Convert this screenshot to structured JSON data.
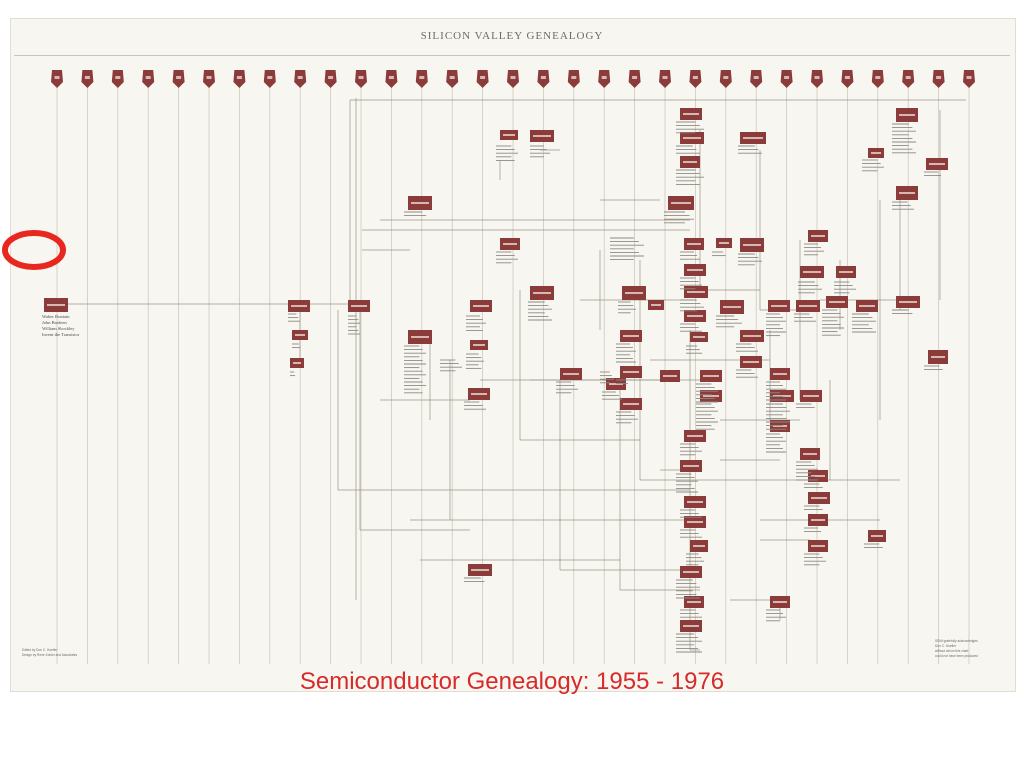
{
  "poster": {
    "title": "SILICON VALLEY GENEALOGY",
    "origin_names": [
      "Walter Brattain",
      "John Bardeen",
      "William Shockley",
      "Invent the Transistor"
    ],
    "footer_left": [
      "Edited by Don C. Hoefler",
      "Design by Rene Kohler and Associates"
    ],
    "footer_right": [
      "SEMI gratefully acknowledges",
      "Don C. Hoefler",
      "without whom this chart",
      "could not have been produced"
    ],
    "colors": {
      "node": "#8b3b3a",
      "line": "#9a9488",
      "paper": "#f8f6f0",
      "note": "#6b6b6b"
    }
  },
  "caption": {
    "text": "Semiconductor Genealogy: 1955 - 1976",
    "color": "#d72a2a"
  },
  "marker": {
    "shape": "red-circle-outline",
    "color": "#e8281f"
  }
}
